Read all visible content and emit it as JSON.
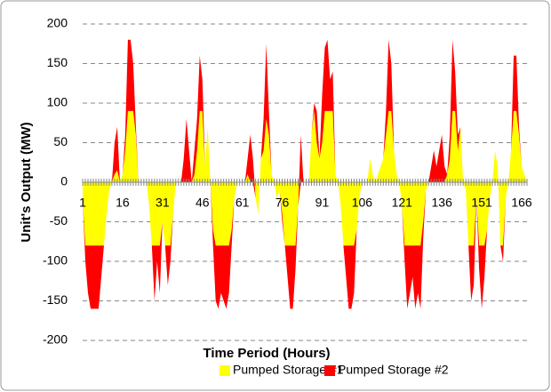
{
  "chart_data": {
    "type": "area",
    "stacked": true,
    "x_label": "Time Period (Hours)",
    "y_label": "Unit's Output (MW)",
    "x": [
      1,
      2,
      3,
      4,
      5,
      6,
      7,
      8,
      9,
      10,
      11,
      12,
      13,
      14,
      15,
      16,
      17,
      18,
      19,
      20,
      21,
      22,
      23,
      24,
      25,
      26,
      27,
      28,
      29,
      30,
      31,
      32,
      33,
      34,
      35,
      36,
      37,
      38,
      39,
      40,
      41,
      42,
      43,
      44,
      45,
      46,
      47,
      48,
      49,
      50,
      51,
      52,
      53,
      54,
      55,
      56,
      57,
      58,
      59,
      60,
      61,
      62,
      63,
      64,
      65,
      66,
      67,
      68,
      69,
      70,
      71,
      72,
      73,
      74,
      75,
      76,
      77,
      78,
      79,
      80,
      81,
      82,
      83,
      84,
      85,
      86,
      87,
      88,
      89,
      90,
      91,
      92,
      93,
      94,
      95,
      96,
      97,
      98,
      99,
      100,
      101,
      102,
      103,
      104,
      105,
      106,
      107,
      108,
      109,
      110,
      111,
      112,
      113,
      114,
      115,
      116,
      117,
      118,
      119,
      120,
      121,
      122,
      123,
      124,
      125,
      126,
      127,
      128,
      129,
      130,
      131,
      132,
      133,
      134,
      135,
      136,
      137,
      138,
      139,
      140,
      141,
      142,
      143,
      144,
      145,
      146,
      147,
      148,
      149,
      150,
      151,
      152,
      153,
      154,
      155,
      156,
      157,
      158,
      159,
      160,
      161,
      162,
      163,
      164,
      165,
      166,
      167,
      168
    ],
    "series": [
      {
        "name": "Pumped Storage #1",
        "color": "#ffff00",
        "values": [
          -20,
          -80,
          -80,
          -80,
          -80,
          -80,
          -80,
          -80,
          -80,
          -40,
          -10,
          0,
          10,
          15,
          0,
          10,
          40,
          90,
          90,
          90,
          60,
          0,
          0,
          0,
          0,
          -30,
          -80,
          -80,
          -80,
          -80,
          -50,
          -80,
          -80,
          -80,
          -40,
          0,
          0,
          0,
          0,
          0,
          0,
          0,
          10,
          40,
          90,
          90,
          20,
          70,
          0,
          -60,
          -80,
          -80,
          -80,
          -80,
          -80,
          -80,
          -60,
          -20,
          0,
          0,
          0,
          0,
          10,
          0,
          0,
          -20,
          -40,
          30,
          40,
          80,
          60,
          10,
          0,
          -20,
          -10,
          -40,
          -80,
          -80,
          -80,
          -80,
          -80,
          -30,
          0,
          0,
          0,
          0,
          60,
          90,
          50,
          30,
          50,
          90,
          90,
          90,
          90,
          10,
          0,
          -30,
          -80,
          -80,
          -80,
          -80,
          -80,
          -60,
          -20,
          0,
          0,
          0,
          30,
          10,
          0,
          10,
          20,
          30,
          60,
          90,
          90,
          40,
          10,
          0,
          -30,
          -80,
          -80,
          -80,
          -80,
          -80,
          -80,
          -80,
          -50,
          -10,
          0,
          0,
          0,
          0,
          0,
          0,
          0,
          10,
          30,
          90,
          90,
          40,
          70,
          0,
          -10,
          -80,
          -80,
          -80,
          -20,
          -80,
          -80,
          -80,
          -60,
          -20,
          0,
          40,
          20,
          -80,
          -80,
          -20,
          0,
          40,
          90,
          90,
          60,
          20,
          10,
          0
        ]
      },
      {
        "name": "Pumped Storage #2",
        "color": "#ff0000",
        "values": [
          0,
          -20,
          -60,
          -80,
          -80,
          -80,
          -80,
          -40,
          0,
          0,
          0,
          0,
          40,
          55,
          0,
          0,
          20,
          90,
          90,
          60,
          10,
          0,
          0,
          0,
          0,
          0,
          0,
          -70,
          -20,
          -60,
          0,
          0,
          -50,
          -20,
          0,
          0,
          0,
          0,
          30,
          80,
          40,
          0,
          30,
          40,
          70,
          40,
          0,
          0,
          0,
          -20,
          -70,
          -80,
          -60,
          -70,
          -80,
          -60,
          -20,
          0,
          0,
          0,
          0,
          0,
          20,
          60,
          30,
          0,
          0,
          0,
          40,
          95,
          30,
          0,
          0,
          0,
          0,
          -10,
          0,
          -40,
          -80,
          -80,
          -30,
          0,
          60,
          0,
          0,
          0,
          0,
          10,
          40,
          0,
          60,
          80,
          90,
          40,
          50,
          0,
          0,
          0,
          0,
          -40,
          -80,
          -80,
          -60,
          0,
          0,
          0,
          0,
          0,
          0,
          0,
          0,
          0,
          0,
          0,
          30,
          90,
          60,
          0,
          0,
          0,
          0,
          -20,
          -80,
          -60,
          -40,
          -80,
          -60,
          -80,
          -20,
          0,
          0,
          20,
          40,
          20,
          40,
          60,
          20,
          0,
          30,
          90,
          50,
          20,
          0,
          0,
          0,
          0,
          -70,
          -50,
          0,
          -30,
          -80,
          -40,
          0,
          0,
          0,
          0,
          0,
          0,
          -20,
          0,
          0,
          0,
          70,
          70,
          10,
          0,
          0,
          0
        ]
      }
    ],
    "xlim": [
      1,
      168
    ],
    "xticks": [
      1,
      16,
      31,
      46,
      61,
      76,
      91,
      106,
      121,
      136,
      151,
      166
    ],
    "ylim": [
      -200,
      200
    ],
    "yticks": [
      -200,
      -150,
      -100,
      -50,
      0,
      50,
      100,
      150,
      200
    ],
    "grid": true,
    "legend": "bottom"
  }
}
